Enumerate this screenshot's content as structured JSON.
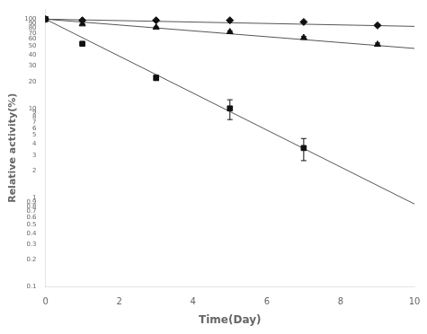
{
  "chart_data": {
    "type": "scatter",
    "xlabel": "Time(Day)",
    "ylabel": "Relative activity(%)",
    "xlim": [
      0,
      10
    ],
    "xticks": [
      0,
      2,
      4,
      6,
      8,
      10
    ],
    "ylim": [
      0.1,
      130
    ],
    "yticks": [
      0.1,
      0.2,
      0.3,
      0.4,
      0.5,
      0.6,
      0.7,
      0.8,
      0.9,
      1,
      2,
      3,
      4,
      5,
      6,
      7,
      8,
      9,
      10,
      20,
      30,
      40,
      50,
      60,
      70,
      80,
      90,
      100
    ],
    "log": "y",
    "grid": false,
    "series": [
      {
        "type": "line",
        "x": [
          0,
          10
        ],
        "values": [
          100,
          83
        ],
        "color": "#555555",
        "line_style": "solid"
      },
      {
        "type": "line",
        "x": [
          0,
          10
        ],
        "values": [
          100,
          47
        ],
        "color": "#555555",
        "line_style": "solid"
      },
      {
        "type": "line",
        "x": [
          0,
          10
        ],
        "values": [
          100,
          0.85
        ],
        "color": "#555555",
        "line_style": "solid"
      },
      {
        "type": "scatter",
        "x": [
          0,
          1,
          3,
          5,
          7,
          9
        ],
        "values": [
          100,
          97,
          97,
          97,
          93,
          85
        ],
        "yerr": [
          0,
          0,
          1,
          1,
          2,
          2
        ],
        "color": "#111111",
        "marker": "diamond"
      },
      {
        "type": "scatter",
        "x": [
          0,
          1,
          3,
          5,
          7,
          9
        ],
        "values": [
          100,
          88,
          81,
          72,
          62,
          52
        ],
        "yerr": [
          0,
          1,
          1,
          2,
          2,
          2
        ],
        "color": "#111111",
        "marker": "triangle"
      },
      {
        "type": "scatter",
        "x": [
          0,
          1,
          3,
          5,
          7
        ],
        "values": [
          100,
          53,
          22,
          10,
          3.6
        ],
        "yerr": [
          0,
          1,
          1.5,
          2.5,
          1.0
        ],
        "color": "#111111",
        "marker": "square"
      }
    ]
  }
}
